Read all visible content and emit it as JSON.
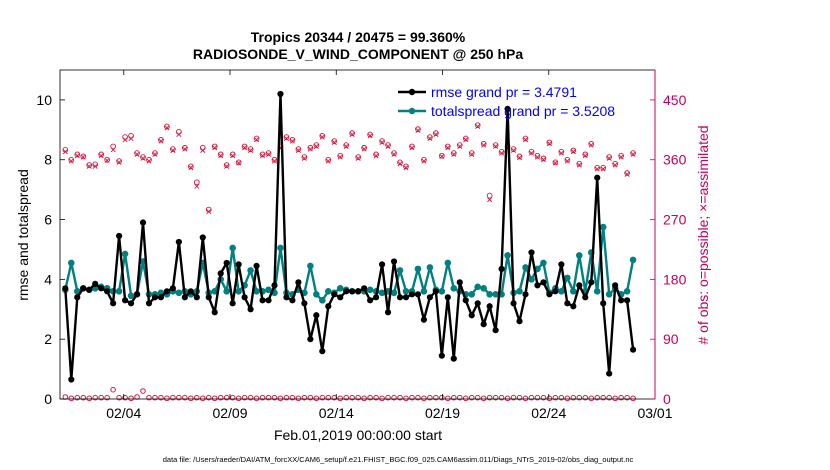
{
  "chart_data": {
    "type": "line",
    "title_line1": "Tropics 20344 / 20475 = 99.360%",
    "title_line2": "RADIOSONDE_V_WIND_COMPONENT @ 250 hPa",
    "xlabel": "Feb.01,2019 00:00:00 start",
    "ylabel_left": "rmse and totalspread",
    "ylabel_right": "# of obs: o=possible; ×=assimilated",
    "footer": "data file: /Users/raeder/DAI/ATM_forcXX/CAM6_setup/f.e21.FHIST_BGC.f09_025.CAM6assim.011/Diags_NTrS_2019-02/obs_diag_output.nc",
    "x_tick_labels": [
      "02/04",
      "02/09",
      "02/14",
      "02/19",
      "02/24",
      "03/01"
    ],
    "x_tick_values": [
      3.5,
      8.5,
      13.5,
      18.5,
      23.5,
      28.5
    ],
    "xlim": [
      0.5,
      28.5
    ],
    "ylim_left": [
      0,
      11
    ],
    "y_left_ticks": [
      "0",
      "2",
      "4",
      "6",
      "8",
      "10"
    ],
    "ylim_right": [
      0,
      495
    ],
    "y_right_ticks": [
      "0",
      "90",
      "180",
      "270",
      "360",
      "450"
    ],
    "colors": {
      "rmse": "#000000",
      "spread": "#008080",
      "obs": "#dc143c",
      "right_axis": "#c8005a",
      "legend_text": "#0000ff"
    },
    "legend": [
      {
        "label": "rmse grand pr = 3.4791"
      },
      {
        "label": "totalspread grand pr = 3.5208"
      }
    ],
    "series": [
      {
        "name": "rmse",
        "values": [
          3.7,
          0.65,
          3.4,
          3.7,
          3.65,
          3.85,
          3.7,
          3.6,
          3.2,
          5.45,
          3.3,
          3.2,
          3.5,
          5.9,
          3.2,
          3.4,
          3.4,
          3.6,
          3.7,
          5.25,
          3.4,
          3.6,
          3.4,
          5.4,
          3.4,
          2.9,
          4.2,
          4.55,
          3.2,
          4.5,
          3.4,
          3.0,
          4.45,
          3.3,
          3.3,
          3.8,
          10.2,
          3.4,
          3.3,
          3.9,
          3.2,
          2.0,
          2.8,
          1.6,
          3.1,
          3.5,
          3.4,
          3.6,
          3.6,
          3.6,
          3.7,
          3.3,
          3.4,
          4.5,
          2.9,
          4.6,
          3.4,
          3.4,
          3.5,
          3.5,
          2.65,
          3.4,
          3.6,
          1.45,
          3.4,
          1.35,
          3.9,
          3.3,
          2.8,
          3.2,
          2.5,
          3.1,
          2.3,
          4.35,
          9.7,
          3.2,
          2.6,
          3.5,
          4.9,
          3.8,
          3.9,
          3.5,
          3.6,
          4.5,
          3.2,
          3.1,
          3.8,
          3.4,
          3.9,
          7.4,
          3.2,
          0.85,
          3.8,
          3.3,
          3.3,
          1.65
        ]
      },
      {
        "name": "totalspread",
        "values": [
          3.65,
          4.55,
          3.6,
          3.7,
          3.65,
          3.7,
          3.75,
          3.7,
          3.6,
          3.6,
          4.85,
          3.45,
          3.5,
          4.6,
          3.5,
          3.5,
          3.55,
          3.5,
          3.6,
          3.55,
          3.6,
          3.5,
          3.6,
          4.55,
          3.55,
          3.6,
          4.0,
          3.6,
          5.05,
          3.6,
          3.8,
          4.3,
          3.6,
          3.6,
          3.65,
          3.55,
          5.05,
          3.55,
          3.5,
          3.65,
          3.55,
          4.45,
          3.5,
          3.3,
          3.6,
          3.55,
          3.7,
          3.65,
          3.6,
          3.6,
          3.6,
          3.65,
          3.6,
          3.55,
          3.6,
          3.55,
          4.3,
          3.6,
          3.6,
          4.35,
          3.6,
          4.4,
          3.65,
          3.6,
          4.55,
          3.7,
          3.6,
          3.5,
          3.5,
          3.75,
          3.7,
          3.5,
          3.5,
          3.5,
          4.8,
          3.55,
          3.6,
          4.4,
          4.0,
          4.35,
          4.55,
          3.55,
          3.7,
          3.6,
          4.05,
          3.6,
          4.8,
          3.6,
          4.9,
          3.6,
          5.75,
          3.5,
          3.7,
          3.5,
          3.6,
          4.65
        ]
      }
    ],
    "obs_assimilated": [
      372,
      358,
      366,
      364,
      350,
      350,
      366,
      359,
      375,
      356,
      390,
      392,
      368,
      362,
      358,
      368,
      388,
      408,
      374,
      398,
      376,
      348,
      320,
      374,
      282,
      378,
      366,
      350,
      366,
      355,
      378,
      374,
      390,
      366,
      368,
      358,
      378,
      392,
      388,
      374,
      362,
      376,
      380,
      394,
      358,
      386,
      364,
      380,
      398,
      362,
      376,
      396,
      366,
      386,
      380,
      368,
      354,
      348,
      378,
      404,
      358,
      392,
      398,
      365,
      378,
      368,
      380,
      390,
      368,
      410,
      382,
      300,
      380,
      370,
      378,
      374,
      363,
      390,
      370,
      364,
      360,
      384,
      355,
      370,
      358,
      372,
      352,
      366,
      382,
      346,
      346,
      362,
      352,
      364,
      338,
      368
    ],
    "obs_possible": [
      375,
      360,
      368,
      365,
      352,
      353,
      368,
      360,
      380,
      358,
      394,
      396,
      370,
      364,
      360,
      370,
      390,
      410,
      376,
      402,
      378,
      350,
      326,
      378,
      285,
      380,
      368,
      352,
      368,
      356,
      380,
      376,
      392,
      368,
      370,
      360,
      380,
      394,
      390,
      376,
      364,
      378,
      382,
      396,
      360,
      388,
      366,
      382,
      400,
      364,
      378,
      398,
      368,
      388,
      382,
      370,
      356,
      350,
      380,
      406,
      360,
      394,
      400,
      366,
      380,
      370,
      382,
      392,
      370,
      412,
      384,
      306,
      382,
      372,
      380,
      376,
      365,
      392,
      372,
      366,
      362,
      386,
      356,
      372,
      360,
      374,
      354,
      368,
      384,
      348,
      348,
      364,
      354,
      366,
      340,
      370
    ],
    "obs_bottom": [
      3,
      1,
      2,
      2,
      1,
      2,
      2,
      2,
      14,
      2,
      2,
      1,
      3,
      12,
      2,
      2,
      2,
      1,
      2,
      2,
      2,
      1,
      2,
      1,
      2,
      1,
      2,
      2,
      2,
      1,
      2,
      2,
      1,
      2,
      2,
      2,
      1,
      2,
      2,
      1,
      2,
      2,
      1,
      2,
      2,
      2,
      1,
      2,
      2,
      2,
      1,
      2,
      2,
      1,
      2,
      2,
      2,
      1,
      2,
      2,
      1,
      2,
      2,
      2,
      1,
      2,
      2,
      1,
      2,
      2,
      1,
      2,
      2,
      2,
      1,
      2,
      2,
      1,
      2,
      2,
      2,
      1,
      2,
      2,
      1,
      2,
      2,
      2,
      1,
      2,
      2,
      2,
      1,
      2,
      2,
      1
    ]
  }
}
